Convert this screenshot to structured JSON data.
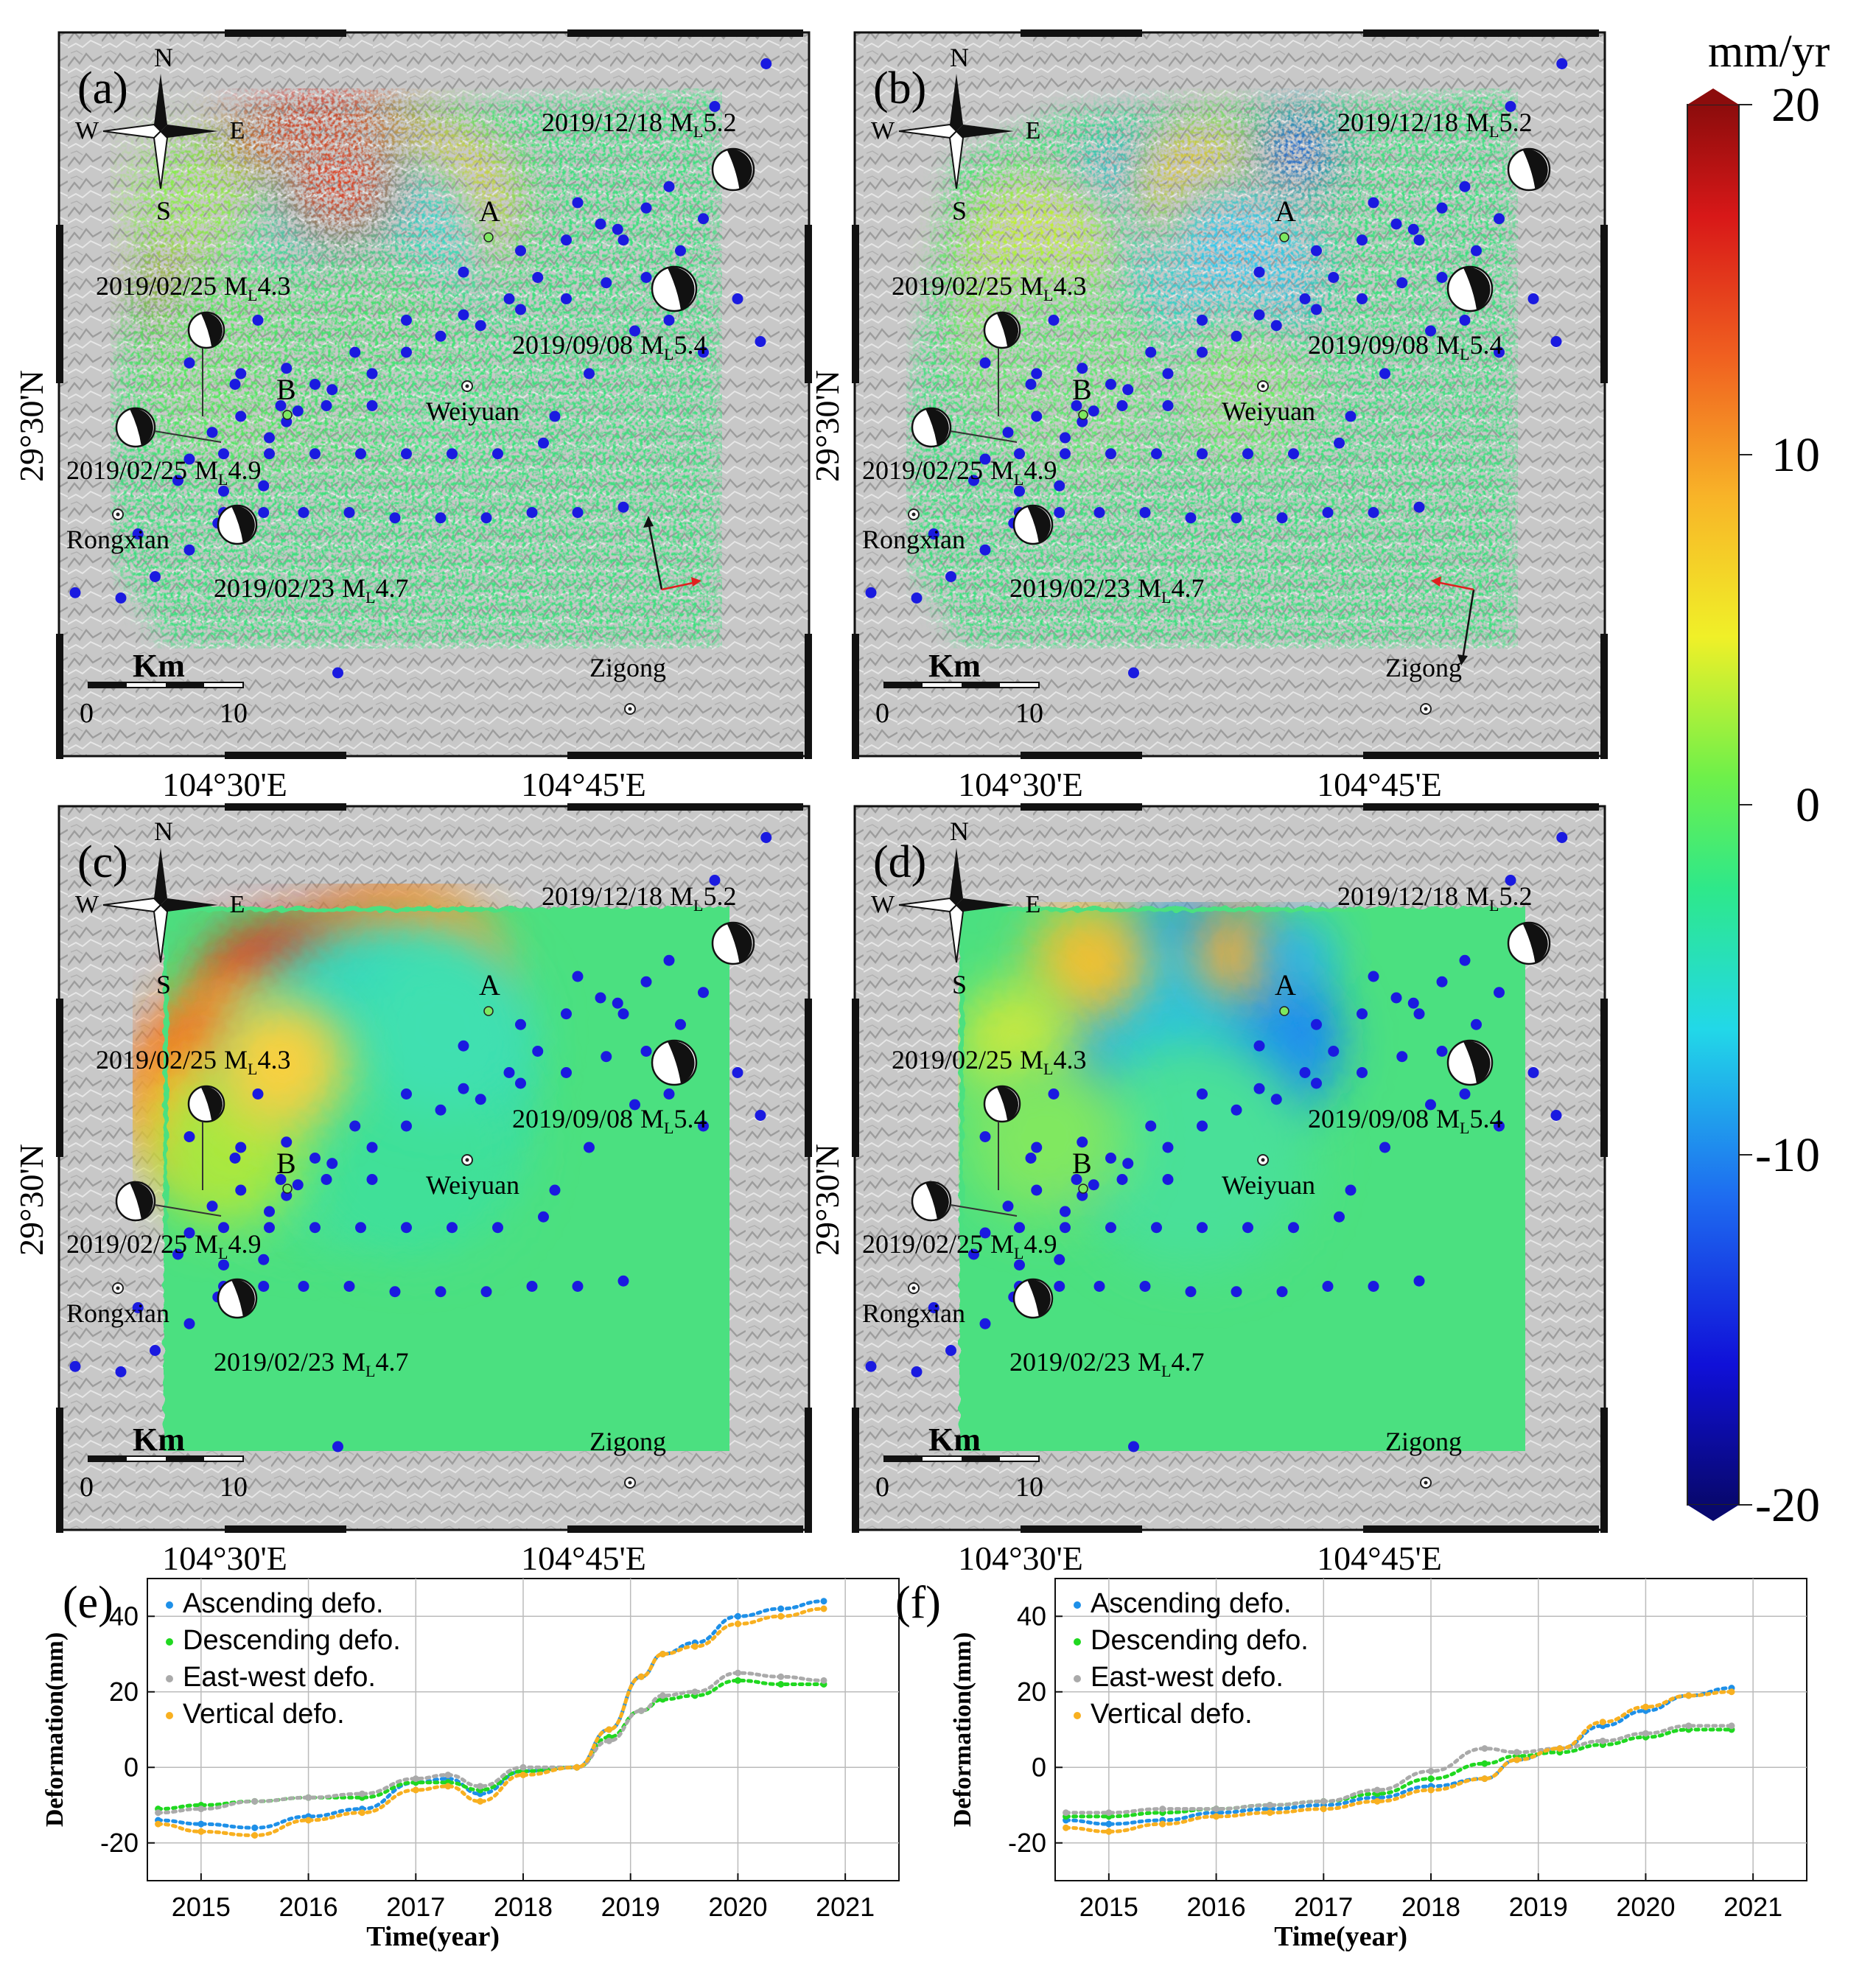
{
  "colorbar": {
    "unit": "mm/yr",
    "ticks": [
      20,
      10,
      0,
      -10,
      -20
    ],
    "min": -20,
    "max": 20,
    "colors": [
      "#08086e",
      "#1010d8",
      "#1e6cf0",
      "#22d8e8",
      "#2ee88a",
      "#6ef04a",
      "#f0f028",
      "#f8b428",
      "#f06020",
      "#d81818",
      "#8c0c0c"
    ]
  },
  "maps": [
    {
      "label": "(a)",
      "style": "sparse",
      "scale_title": "Km",
      "scale_ticks": [
        "0",
        "10"
      ],
      "lon_ticks": [
        "104°30'E",
        "104°45'E"
      ],
      "lat_tick": "29°30'N",
      "compass": {
        "n": "N",
        "s": "S",
        "e": "E",
        "w": "W"
      },
      "points": {
        "a": "A",
        "b": "B"
      },
      "towns": {
        "weiyuan": "Weiyuan",
        "rongxian": "Rongxian",
        "zigong": "Zigong"
      },
      "quakes": [
        {
          "date": "2019/12/18",
          "mag": "5.2"
        },
        {
          "date": "2019/02/25",
          "mag": "4.3"
        },
        {
          "date": "2019/09/08",
          "mag": "5.4"
        },
        {
          "date": "2019/02/25",
          "mag": "4.9"
        },
        {
          "date": "2019/02/23",
          "mag": "4.7"
        }
      ],
      "los_arrows": "ascending"
    },
    {
      "label": "(b)",
      "style": "sparse",
      "scale_title": "Km",
      "scale_ticks": [
        "0",
        "10"
      ],
      "lon_ticks": [
        "104°30'E",
        "104°45'E"
      ],
      "lat_tick": "29°30'N",
      "compass": {
        "n": "N",
        "s": "S",
        "e": "E",
        "w": "W"
      },
      "points": {
        "a": "A",
        "b": "B"
      },
      "towns": {
        "weiyuan": "Weiyuan",
        "rongxian": "Rongxian",
        "zigong": "Zigong"
      },
      "quakes": [
        {
          "date": "2019/12/18",
          "mag": "5.2"
        },
        {
          "date": "2019/02/25",
          "mag": "4.3"
        },
        {
          "date": "2019/09/08",
          "mag": "5.4"
        },
        {
          "date": "2019/02/25",
          "mag": "4.9"
        },
        {
          "date": "2019/02/23",
          "mag": "4.7"
        }
      ],
      "los_arrows": "descending"
    },
    {
      "label": "(c)",
      "style": "dense",
      "scale_title": "Km",
      "scale_ticks": [
        "0",
        "10"
      ],
      "lon_ticks": [
        "104°30'E",
        "104°45'E"
      ],
      "lat_tick": "29°30'N",
      "compass": {
        "n": "N",
        "s": "S",
        "e": "E",
        "w": "W"
      },
      "points": {
        "a": "A",
        "b": "B"
      },
      "towns": {
        "weiyuan": "Weiyuan",
        "rongxian": "Rongxian",
        "zigong": "Zigong"
      },
      "quakes": [
        {
          "date": "2019/12/18",
          "mag": "5.2"
        },
        {
          "date": "2019/02/25",
          "mag": "4.3"
        },
        {
          "date": "2019/09/08",
          "mag": "5.4"
        },
        {
          "date": "2019/02/25",
          "mag": "4.9"
        },
        {
          "date": "2019/02/23",
          "mag": "4.7"
        }
      ],
      "los_arrows": "none"
    },
    {
      "label": "(d)",
      "style": "dense",
      "scale_title": "Km",
      "scale_ticks": [
        "0",
        "10"
      ],
      "lon_ticks": [
        "104°30'E",
        "104°45'E"
      ],
      "lat_tick": "29°30'N",
      "compass": {
        "n": "N",
        "s": "S",
        "e": "E",
        "w": "W"
      },
      "points": {
        "a": "A",
        "b": "B"
      },
      "towns": {
        "weiyuan": "Weiyuan",
        "rongxian": "Rongxian",
        "zigong": "Zigong"
      },
      "quakes": [
        {
          "date": "2019/12/18",
          "mag": "5.2"
        },
        {
          "date": "2019/02/25",
          "mag": "4.3"
        },
        {
          "date": "2019/09/08",
          "mag": "5.4"
        },
        {
          "date": "2019/02/25",
          "mag": "4.9"
        },
        {
          "date": "2019/02/23",
          "mag": "4.7"
        }
      ],
      "los_arrows": "none"
    }
  ],
  "chart_data": [
    {
      "type": "scatter",
      "panel": "(e)",
      "xlabel": "Time(year)",
      "ylabel": "Deformation(mm)",
      "xlim": [
        2014.5,
        2021.5
      ],
      "ylim": [
        -30,
        50
      ],
      "xticks": [
        2015,
        2016,
        2017,
        2018,
        2019,
        2020,
        2021
      ],
      "yticks": [
        -20,
        0,
        20,
        40
      ],
      "grid": true,
      "legend_position": "top-left",
      "series": [
        {
          "name": "Ascending defo.",
          "color": "#1e90e8",
          "x": [
            2014.6,
            2015.0,
            2015.5,
            2016.0,
            2016.5,
            2017.0,
            2017.3,
            2017.6,
            2018.0,
            2018.5,
            2018.8,
            2019.1,
            2019.3,
            2019.6,
            2020.0,
            2020.4,
            2020.8
          ],
          "y": [
            -14,
            -15,
            -16,
            -13,
            -11,
            -4,
            -3,
            -7,
            -1,
            0,
            10,
            24,
            30,
            33,
            40,
            42,
            44
          ]
        },
        {
          "name": "Descending defo.",
          "color": "#20d820",
          "x": [
            2014.6,
            2015.0,
            2015.5,
            2016.0,
            2016.5,
            2017.0,
            2017.3,
            2017.6,
            2018.0,
            2018.5,
            2018.8,
            2019.1,
            2019.3,
            2019.6,
            2020.0,
            2020.4,
            2020.8
          ],
          "y": [
            -11,
            -10,
            -9,
            -8,
            -8,
            -4,
            -4,
            -6,
            -1,
            0,
            8,
            15,
            18,
            19,
            23,
            22,
            22
          ]
        },
        {
          "name": "East-west  defo.",
          "color": "#aaaaaa",
          "x": [
            2014.6,
            2015.0,
            2015.5,
            2016.0,
            2016.5,
            2017.0,
            2017.3,
            2017.6,
            2018.0,
            2018.5,
            2018.8,
            2019.1,
            2019.3,
            2019.6,
            2020.0,
            2020.4,
            2020.8
          ],
          "y": [
            -12,
            -11,
            -9,
            -8,
            -7,
            -3,
            -2,
            -5,
            0,
            0,
            7,
            15,
            19,
            20,
            25,
            24,
            23
          ]
        },
        {
          "name": "Vertical defo.",
          "color": "#f8b020",
          "x": [
            2014.6,
            2015.0,
            2015.5,
            2016.0,
            2016.5,
            2017.0,
            2017.3,
            2017.6,
            2018.0,
            2018.5,
            2018.8,
            2019.1,
            2019.3,
            2019.6,
            2020.0,
            2020.4,
            2020.8
          ],
          "y": [
            -15,
            -17,
            -18,
            -14,
            -12,
            -6,
            -5,
            -9,
            -2,
            0,
            10,
            24,
            30,
            32,
            38,
            40,
            42
          ]
        }
      ]
    },
    {
      "type": "scatter",
      "panel": "(f)",
      "xlabel": "Time(year)",
      "ylabel": "Deformation(mm)",
      "xlim": [
        2014.5,
        2021.5
      ],
      "ylim": [
        -30,
        50
      ],
      "xticks": [
        2015,
        2016,
        2017,
        2018,
        2019,
        2020,
        2021
      ],
      "yticks": [
        -20,
        0,
        20,
        40
      ],
      "grid": true,
      "legend_position": "top-left",
      "series": [
        {
          "name": "Ascending defo.",
          "color": "#1e90e8",
          "x": [
            2014.6,
            2015.0,
            2015.5,
            2016.0,
            2016.5,
            2017.0,
            2017.5,
            2018.0,
            2018.5,
            2018.8,
            2019.2,
            2019.6,
            2020.0,
            2020.4,
            2020.8
          ],
          "y": [
            -14,
            -15,
            -14,
            -12,
            -11,
            -10,
            -8,
            -5,
            -3,
            2,
            5,
            11,
            15,
            19,
            21
          ]
        },
        {
          "name": "Descending defo.",
          "color": "#20d820",
          "x": [
            2014.6,
            2015.0,
            2015.5,
            2016.0,
            2016.5,
            2017.0,
            2017.5,
            2018.0,
            2018.5,
            2018.8,
            2019.2,
            2019.6,
            2020.0,
            2020.4,
            2020.8
          ],
          "y": [
            -13,
            -13,
            -12,
            -11,
            -10,
            -9,
            -7,
            -3,
            1,
            3,
            4,
            6,
            8,
            10,
            10
          ]
        },
        {
          "name": "East-west  defo.",
          "color": "#aaaaaa",
          "x": [
            2014.6,
            2015.0,
            2015.5,
            2016.0,
            2016.5,
            2017.0,
            2017.5,
            2018.0,
            2018.5,
            2018.8,
            2019.2,
            2019.6,
            2020.0,
            2020.4,
            2020.8
          ],
          "y": [
            -12,
            -12,
            -11,
            -11,
            -10,
            -9,
            -6,
            -1,
            5,
            4,
            5,
            7,
            9,
            11,
            11
          ]
        },
        {
          "name": "Vertical defo.",
          "color": "#f8b020",
          "x": [
            2014.6,
            2015.0,
            2015.5,
            2016.0,
            2016.5,
            2017.0,
            2017.5,
            2018.0,
            2018.5,
            2018.8,
            2019.2,
            2019.6,
            2020.0,
            2020.4,
            2020.8
          ],
          "y": [
            -16,
            -17,
            -15,
            -13,
            -12,
            -11,
            -9,
            -6,
            -3,
            2,
            5,
            12,
            16,
            19,
            20
          ]
        }
      ]
    }
  ]
}
